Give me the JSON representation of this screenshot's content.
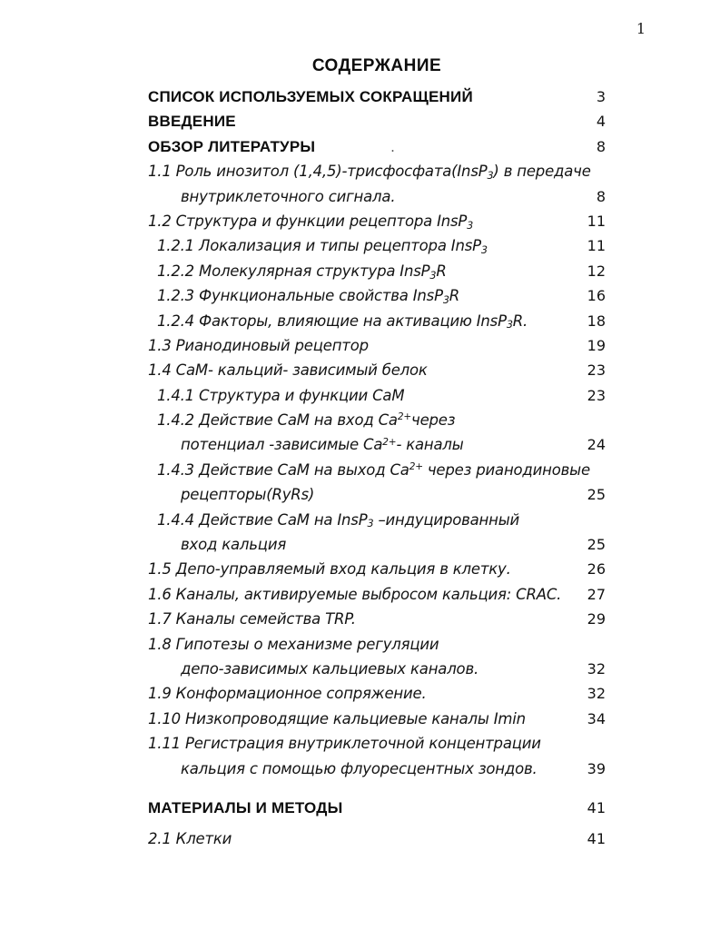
{
  "page": {
    "corner_page_number": "1"
  },
  "toc": {
    "title": "СОДЕРЖАНИЕ",
    "rows": [
      {
        "text": "СПИСОК ИСПОЛЬЗУЕМЫХ СОКРАЩЕНИЙ",
        "page": "3",
        "bold": true,
        "indent": 0
      },
      {
        "text": "ВВЕДЕНИЕ",
        "page": "4",
        "bold": true,
        "indent": 0
      },
      {
        "text": "ОБЗОР ЛИТЕРАТУРЫ",
        "page": "8",
        "bold": true,
        "indent": 0,
        "stray_mark": "."
      },
      {
        "text": "1.1 Роль инозитол (1,4,5)-трисфосфата(InsP~3~) в передаче",
        "page": "",
        "indent": 0
      },
      {
        "text": "внутриклеточного сигнала.",
        "page": "8",
        "indent": 2
      },
      {
        "text": "1.2 Структура и функции рецептора InsP~3~",
        "page": "11",
        "indent": 0
      },
      {
        "text": "1.2.1 Локализация и типы рецептора InsP~3~",
        "page": "11",
        "indent": 1
      },
      {
        "text": "1.2.2 Молекулярная структура InsP~3~R",
        "page": "12",
        "indent": 1
      },
      {
        "text": "1.2.3 Функциональные свойства InsP~3~R",
        "page": "16",
        "indent": 1
      },
      {
        "text": "1.2.4 Факторы, влияющие на активацию InsP~3~R.",
        "page": "18",
        "indent": 1
      },
      {
        "text": "1.3 Рианодиновый рецептор",
        "page": "19",
        "indent": 0
      },
      {
        "text": "1.4 СаМ- кальций- зависимый белок",
        "page": "23",
        "indent": 0
      },
      {
        "text": "1.4.1 Структура и функции СаМ",
        "page": "23",
        "indent": 1
      },
      {
        "text": "1.4.2 Действие СаМ на вход Са^2+^через",
        "page": "",
        "indent": 1
      },
      {
        "text": "потенциал -зависимые Са^2+^- каналы",
        "page": "24",
        "indent": 2
      },
      {
        "text": "1.4.3 Действие СаМ на выход Са^2+^ через рианодиновые",
        "page": "",
        "indent": 1
      },
      {
        "text": "рецепторы(RyRs)",
        "page": "25",
        "indent": 2
      },
      {
        "text": "1.4.4 Действие СаМ на InsP~3~ –индуцированный",
        "page": "",
        "indent": 1
      },
      {
        "text": "вход кальция",
        "page": "25",
        "indent": 2
      },
      {
        "text": "1.5 Депо-управляемый вход кальция в клетку.",
        "page": "26",
        "indent": 0
      },
      {
        "text": "1.6 Каналы, активируемые выбросом кальция: CRAC.",
        "page": "27",
        "indent": 0
      },
      {
        "text": "1.7 Каналы семейства TRP.",
        "page": "29",
        "indent": 0
      },
      {
        "text": "1.8 Гипотезы о механизме регуляции",
        "page": "",
        "indent": 0
      },
      {
        "text": "депо-зависимых кальциевых каналов.",
        "page": "32",
        "indent": 2
      },
      {
        "text": "1.9 Конформационное сопряжение.",
        "page": "32",
        "indent": 0
      },
      {
        "text": "1.10 Низкопроводящие кальциевые каналы Imin",
        "page": "34",
        "indent": 0
      },
      {
        "text": "1.11 Регистрация внутриклеточной концентрации",
        "page": "",
        "indent": 0
      },
      {
        "text": "кальция с помощью флуоресцентных зондов.",
        "page": "39",
        "indent": 2
      },
      {
        "text": "МАТЕРИАЛЫ И МЕТОДЫ",
        "page": "41",
        "bold": true,
        "indent": 0,
        "section_break": true
      },
      {
        "text": "2.1 Клетки",
        "page": "41",
        "indent": 0
      }
    ]
  }
}
